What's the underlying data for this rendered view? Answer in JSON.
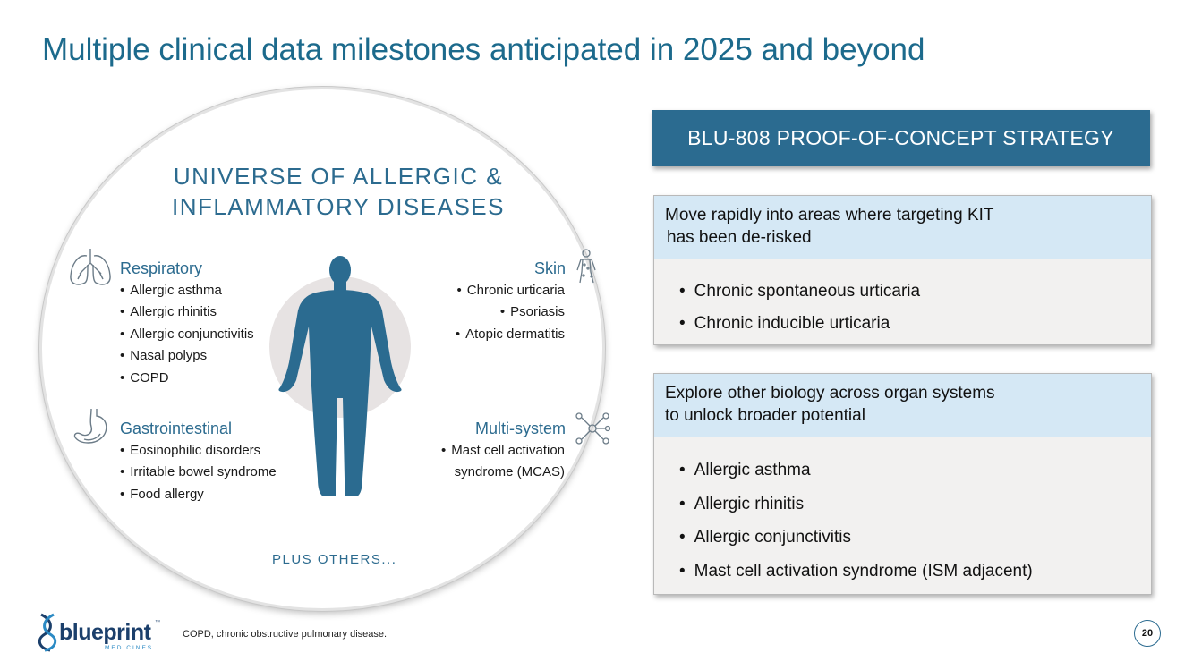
{
  "slide": {
    "title": "Multiple clinical data milestones anticipated in 2025 and beyond",
    "page_number": "20",
    "footnote": "COPD, chronic obstructive pulmonary disease."
  },
  "logo": {
    "wordmark": "blueprint",
    "trademark": "™",
    "subtitle": "MEDICINES"
  },
  "universe": {
    "heading_line1": "UNIVERSE OF ALLERGIC &",
    "heading_line2": "INFLAMMATORY DISEASES",
    "plus_others": "PLUS OTHERS...",
    "categories": {
      "respiratory": {
        "label": "Respiratory",
        "icon": "lungs-icon",
        "items": [
          "Allergic asthma",
          "Allergic rhinitis",
          "Allergic conjunctivitis",
          "Nasal polyps",
          "COPD"
        ]
      },
      "skin": {
        "label": "Skin",
        "icon": "skin-figure-icon",
        "items": [
          "Chronic urticaria",
          "Psoriasis",
          "Atopic dermatitis"
        ]
      },
      "gastrointestinal": {
        "label": "Gastrointestinal",
        "icon": "stomach-icon",
        "items": [
          "Eosinophilic disorders",
          "Irritable bowel syndrome",
          "Food allergy"
        ]
      },
      "multisystem": {
        "label": "Multi-system",
        "icon": "network-icon",
        "items": [
          "Mast cell activation",
          "syndrome (MCAS)"
        ]
      }
    }
  },
  "strategy": {
    "header": "BLU-808 PROOF-OF-CONCEPT STRATEGY",
    "panels": [
      {
        "heading_line1": "Move rapidly into areas where targeting KIT",
        "heading_line2": "has been de-risked",
        "items": [
          "Chronic spontaneous urticaria",
          "Chronic inducible urticaria"
        ]
      },
      {
        "heading_line1": "Explore other biology across organ systems",
        "heading_line2": "to unlock broader potential",
        "items": [
          "Allergic asthma",
          "Allergic rhinitis",
          "Allergic conjunctivitis",
          "Mast cell activation syndrome (ISM adjacent)"
        ]
      }
    ]
  },
  "colors": {
    "accent": "#2b6b90",
    "title": "#1c6a8c",
    "panel_head": "#d5e8f5",
    "panel_body": "#f2f1f0"
  }
}
